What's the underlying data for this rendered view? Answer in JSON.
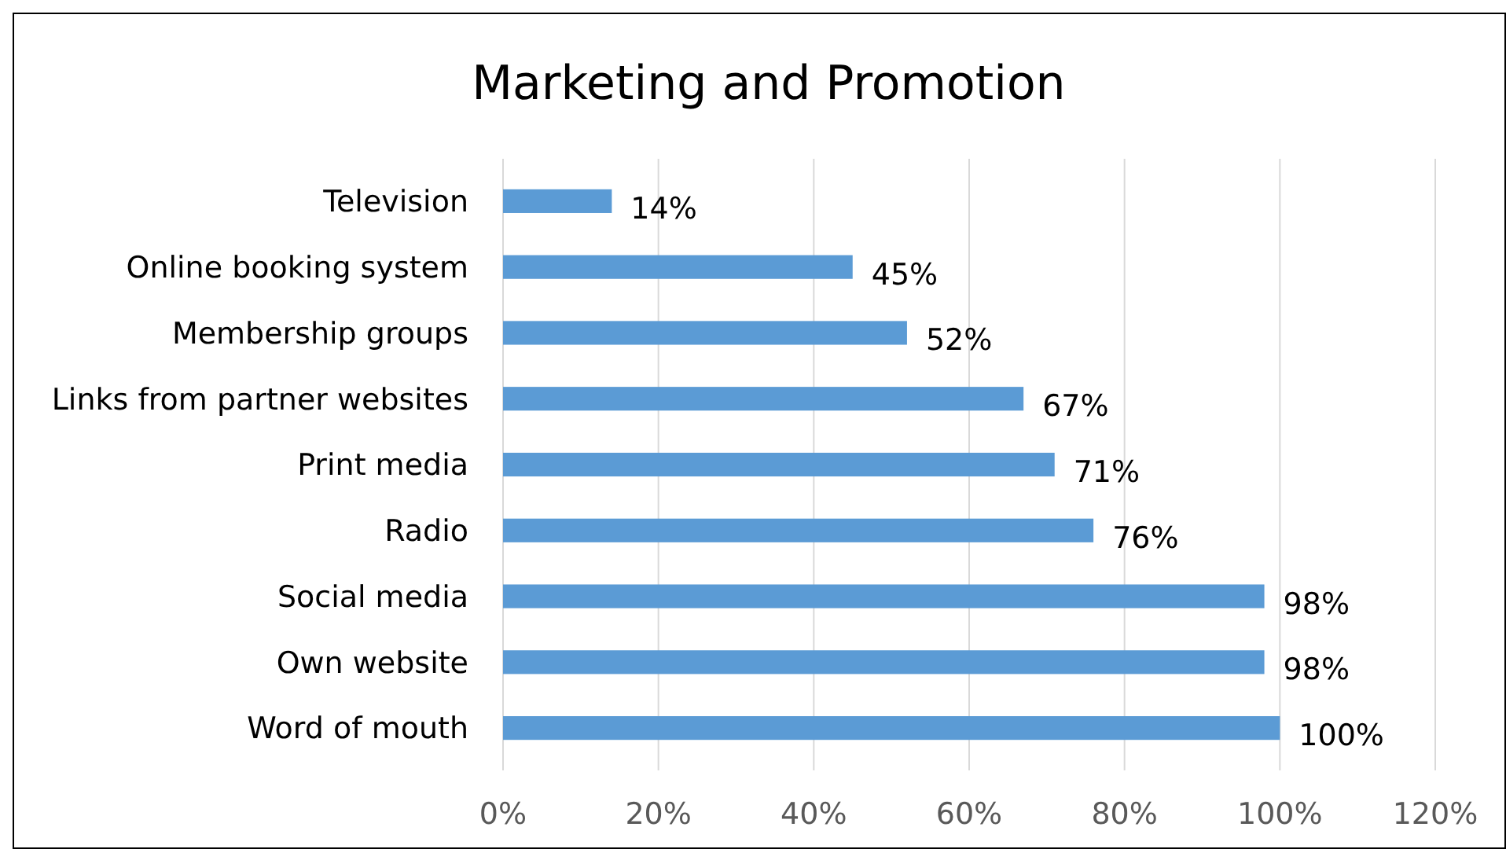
{
  "chart_data": {
    "type": "bar",
    "orientation": "horizontal",
    "title": "Marketing and Promotion",
    "categories": [
      "Television",
      "Online booking system",
      "Membership groups",
      "Links from partner websites",
      "Print media",
      "Radio",
      "Social media",
      "Own website",
      "Word of mouth"
    ],
    "values": [
      14,
      45,
      52,
      67,
      71,
      76,
      98,
      98,
      100
    ],
    "value_labels": [
      "14%",
      "45%",
      "52%",
      "67%",
      "71%",
      "76%",
      "98%",
      "98%",
      "100%"
    ],
    "color": "#5b9bd5",
    "xlim": [
      0,
      120
    ],
    "xticks": [
      {
        "value": 0,
        "label": "0%"
      },
      {
        "value": 20,
        "label": "20%"
      },
      {
        "value": 40,
        "label": "40%"
      },
      {
        "value": 60,
        "label": "60%"
      },
      {
        "value": 80,
        "label": "80%"
      },
      {
        "value": 100,
        "label": "100%"
      },
      {
        "value": 120,
        "label": "120%"
      }
    ],
    "grid": "x"
  }
}
